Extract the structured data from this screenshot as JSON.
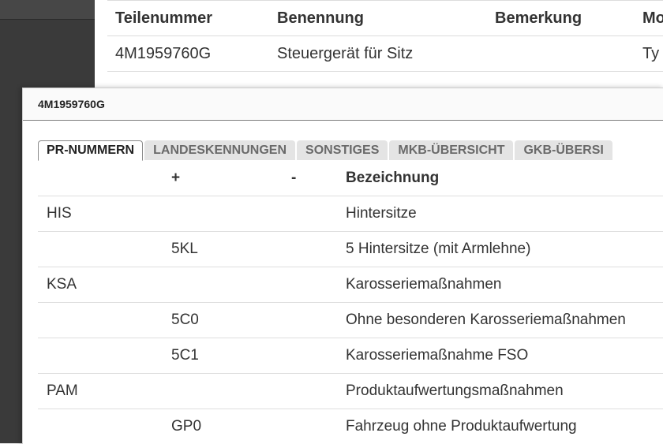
{
  "background_table": {
    "headers": [
      "Teilenummer",
      "Benennung",
      "Bemerkung",
      "Mo"
    ],
    "rows": [
      [
        "4M1959760G",
        "Steuergerät für Sitz",
        "",
        "Ty"
      ]
    ]
  },
  "dialog": {
    "title": "4M1959760G",
    "tabs": [
      {
        "label": "PR-NUMMERN",
        "active": true
      },
      {
        "label": "LANDESKENNUNGEN",
        "active": false
      },
      {
        "label": "SONSTIGES",
        "active": false
      },
      {
        "label": "MKB-ÜBERSICHT",
        "active": false
      },
      {
        "label": "GKB-ÜBERSI",
        "active": false
      }
    ],
    "table": {
      "headers": [
        "",
        "+",
        "-",
        "Bezeichnung"
      ],
      "rows": [
        [
          "HIS",
          "",
          "",
          "Hintersitze"
        ],
        [
          "",
          "5KL",
          "",
          "5 Hintersitze (mit Armlehne)"
        ],
        [
          "KSA",
          "",
          "",
          "Karosseriemaßnahmen"
        ],
        [
          "",
          "5C0",
          "",
          "Ohne besonderen Karosseriemaßnahmen"
        ],
        [
          "",
          "5C1",
          "",
          "Karosseriemaßnahme FSO"
        ],
        [
          "PAM",
          "",
          "",
          "Produktaufwertungsmaßnahmen"
        ],
        [
          "",
          "GP0",
          "",
          "Fahrzeug ohne Produktaufwertung"
        ]
      ]
    }
  },
  "colors": {
    "sidebar_dark": "#3a3a3a",
    "tab_active_border": "#8a8a8a",
    "tab_inactive_bg": "#e4e4e4"
  }
}
